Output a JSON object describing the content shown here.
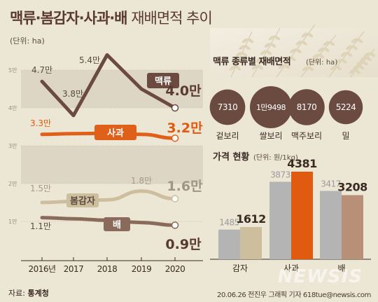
{
  "title": {
    "strong": "맥류·봄감자·사과·배",
    "light": "재배면적 추이"
  },
  "unit_main": "(단위: ha)",
  "source": {
    "prefix": "자료:",
    "name": "통계청"
  },
  "credit": "20.06.26 전진우 그래픽 기자 618tue@newsis.com",
  "watermark": "NEWSIS",
  "colors": {
    "barley": "#6b4a40",
    "apple": "#e0601a",
    "potato": "#cdbf9e",
    "pear": "#8a6a5a",
    "grey": "#b4b4b4",
    "orange": "#e05a10",
    "brown": "#b89078",
    "bubble": "#6b4a40"
  },
  "chart_data": [
    {
      "type": "line",
      "x": [
        "2016년",
        "2017",
        "2018",
        "2019",
        "2020"
      ],
      "yaxis_ticks": [
        "5만",
        "4만",
        "3만",
        "2만",
        "1만"
      ],
      "series": [
        {
          "name": "맥류",
          "values": [
            47000,
            38000,
            54000,
            null,
            40000
          ],
          "labels": [
            "4.7만",
            "3.8만",
            "5.4만",
            "",
            "4.0만"
          ]
        },
        {
          "name": "사과",
          "values": [
            33000,
            null,
            null,
            null,
            32000
          ],
          "labels": [
            "3.3만",
            "",
            "",
            "",
            "3.2만"
          ]
        },
        {
          "name": "봄감자",
          "values": [
            15000,
            null,
            null,
            18000,
            16000
          ],
          "labels": [
            "1.5만",
            "",
            "",
            "1.8만",
            "1.6만"
          ]
        },
        {
          "name": "배",
          "values": [
            11000,
            null,
            null,
            null,
            9000
          ],
          "labels": [
            "1.1만",
            "",
            "",
            "",
            "0.9만"
          ]
        }
      ]
    },
    {
      "type": "bubble",
      "title": "맥류 종류별 재배면적",
      "unit": "(단위: ha)",
      "items": [
        {
          "name": "겉보리",
          "value": 7310,
          "label": "7310"
        },
        {
          "name": "쌀보리",
          "value": 19498,
          "label": "1만9498"
        },
        {
          "name": "맥주보리",
          "value": 8170,
          "label": "8170"
        },
        {
          "name": "밀",
          "value": 5224,
          "label": "5224"
        }
      ]
    },
    {
      "type": "bar",
      "title": "가격 현황",
      "unit": "(단위: 원/1kg)",
      "categories": [
        "감자",
        "사과",
        "배"
      ],
      "series": [
        {
          "values": [
            1485,
            3873,
            3417
          ],
          "labels": [
            "1485",
            "3873",
            "3417"
          ]
        },
        {
          "values": [
            1612,
            4381,
            3208
          ],
          "labels": [
            "1612",
            "4381",
            "3208"
          ]
        }
      ]
    }
  ]
}
